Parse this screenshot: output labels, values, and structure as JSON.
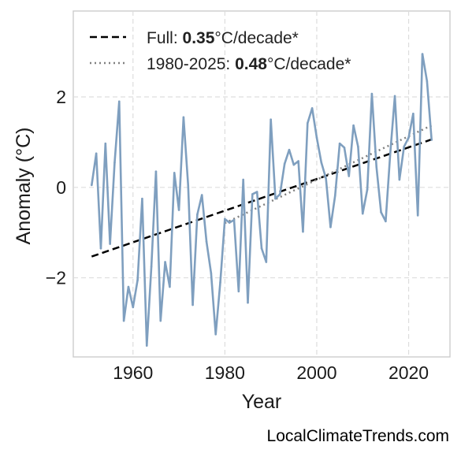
{
  "chart_data": {
    "type": "line",
    "xlabel": "Year",
    "ylabel": "Anomaly (°C)",
    "xlim": [
      1947,
      2029
    ],
    "ylim": [
      -3.75,
      3.9
    ],
    "x_ticks": [
      1960,
      1980,
      2000,
      2020
    ],
    "y_ticks": [
      -2,
      0,
      2
    ],
    "y_tick_labels": [
      "−2",
      "0",
      "2"
    ],
    "grid": true,
    "legend_position": "top-left",
    "colors": {
      "series": "#7f9fbf",
      "full_trend": "#000000",
      "recent_trend": "#808080",
      "frame": "#cccccc",
      "grid": "#dddddd"
    },
    "series": [
      {
        "x": [
          1951,
          1952,
          1953,
          1954,
          1955,
          1956,
          1957,
          1958,
          1959,
          1960,
          1961,
          1962,
          1963,
          1964,
          1965,
          1966,
          1967,
          1968,
          1969,
          1970,
          1971,
          1972,
          1973,
          1974,
          1975,
          1976,
          1977,
          1978,
          1979,
          1980,
          1981,
          1982,
          1983,
          1984,
          1985,
          1986,
          1987,
          1988,
          1989,
          1990,
          1991,
          1992,
          1993,
          1994,
          1995,
          1996,
          1997,
          1998,
          1999,
          2000,
          2001,
          2002,
          2003,
          2004,
          2005,
          2006,
          2007,
          2008,
          2009,
          2010,
          2011,
          2012,
          2013,
          2014,
          2015,
          2016,
          2017,
          2018,
          2019,
          2020,
          2021,
          2022,
          2023,
          2024,
          2025
        ],
        "y": [
          0.05,
          0.75,
          -1.35,
          0.97,
          -1.25,
          0.55,
          1.9,
          -2.95,
          -2.2,
          -2.65,
          -2.05,
          -0.25,
          -3.5,
          -1.75,
          0.35,
          -2.95,
          -1.65,
          -2.2,
          0.32,
          -0.5,
          1.55,
          0.05,
          -2.6,
          -0.6,
          -0.17,
          -1.2,
          -1.9,
          -3.25,
          -2.1,
          -0.7,
          -0.78,
          -0.72,
          -2.3,
          0.17,
          -2.55,
          -0.15,
          -0.1,
          -1.35,
          -1.65,
          1.5,
          -0.25,
          -0.15,
          0.52,
          0.83,
          0.5,
          0.58,
          -0.98,
          1.42,
          1.75,
          1.1,
          0.55,
          0.2,
          -0.88,
          -0.18,
          0.97,
          0.88,
          0.25,
          1.37,
          0.9,
          -0.58,
          -0.05,
          2.07,
          0.45,
          -0.55,
          -0.75,
          0.75,
          2.02,
          0.17,
          0.9,
          1.1,
          1.63,
          -0.62,
          2.95,
          2.35,
          1.05
        ]
      }
    ],
    "trend_lines": [
      {
        "label": "Full: ",
        "bold_value": "0.35",
        "unit": "°C/decade*",
        "style": "dashed",
        "x": [
          1951,
          2025
        ],
        "y": [
          -1.53,
          1.06
        ]
      },
      {
        "label": "1980-2025: ",
        "bold_value": "0.48",
        "unit": "°C/decade*",
        "style": "dotted",
        "x": [
          1980,
          2025
        ],
        "y": [
          -0.79,
          1.37
        ]
      }
    ],
    "footer": "LocalClimateTrends.com"
  }
}
